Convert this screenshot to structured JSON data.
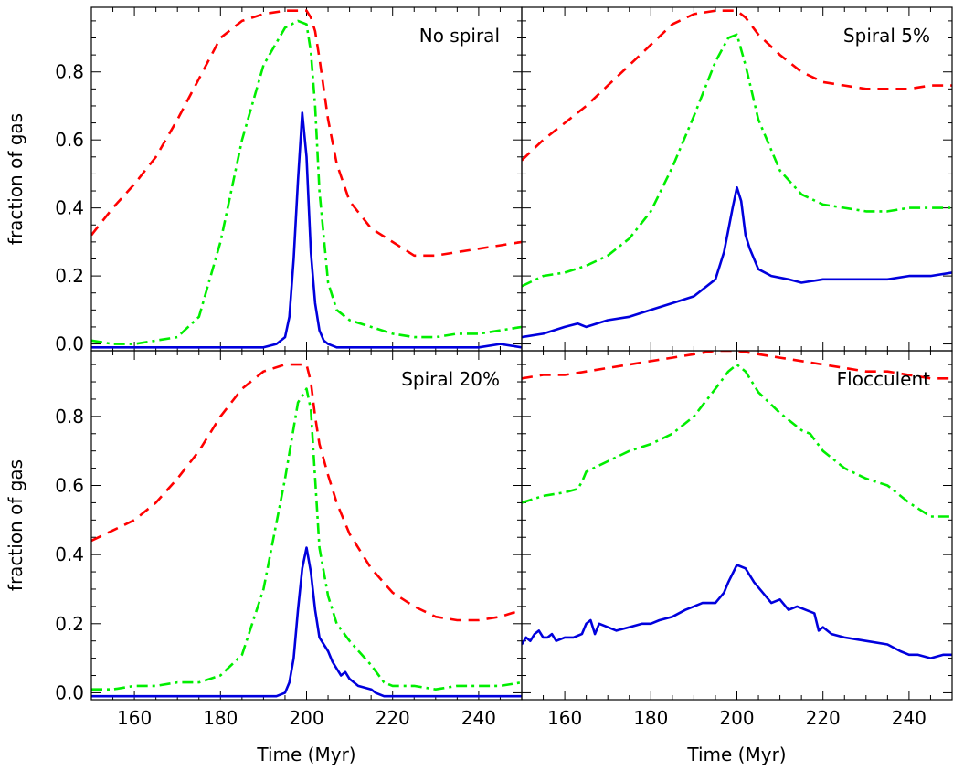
{
  "chart_data": [
    {
      "type": "line",
      "title": "No spiral",
      "xlabel": "",
      "ylabel": "fraction of gas",
      "xlim": [
        150,
        250
      ],
      "ylim": [
        -0.02,
        0.99
      ],
      "xticks": [],
      "yticks": [
        "0.0",
        "0.2",
        "0.4",
        "0.6",
        "0.8"
      ],
      "series": [
        {
          "color": "#ff0000",
          "dash": "12,8",
          "x": [
            150,
            155,
            160,
            165,
            170,
            175,
            180,
            185,
            190,
            195,
            198,
            200,
            201,
            202,
            203,
            205,
            207,
            210,
            215,
            220,
            225,
            230,
            235,
            240,
            245,
            250
          ],
          "y": [
            0.32,
            0.4,
            0.47,
            0.55,
            0.66,
            0.78,
            0.9,
            0.95,
            0.97,
            0.98,
            0.98,
            0.98,
            0.96,
            0.92,
            0.84,
            0.66,
            0.53,
            0.42,
            0.34,
            0.3,
            0.26,
            0.26,
            0.27,
            0.28,
            0.29,
            0.3
          ]
        },
        {
          "color": "#00ee00",
          "dash": "12,5,3,5",
          "x": [
            150,
            155,
            160,
            165,
            170,
            175,
            180,
            185,
            190,
            195,
            198,
            200,
            201,
            202,
            203,
            205,
            207,
            210,
            215,
            220,
            225,
            230,
            235,
            240,
            245,
            250
          ],
          "y": [
            0.01,
            0.0,
            0.0,
            0.01,
            0.02,
            0.08,
            0.3,
            0.6,
            0.82,
            0.93,
            0.95,
            0.94,
            0.86,
            0.7,
            0.45,
            0.18,
            0.1,
            0.07,
            0.05,
            0.03,
            0.02,
            0.02,
            0.03,
            0.03,
            0.04,
            0.05
          ]
        },
        {
          "color": "#0000dd",
          "dash": "",
          "x": [
            150,
            160,
            170,
            180,
            190,
            193,
            195,
            196,
            197,
            198,
            199,
            200,
            201,
            202,
            203,
            204,
            205,
            207,
            210,
            220,
            230,
            240,
            245,
            250
          ],
          "y": [
            -0.01,
            -0.01,
            -0.01,
            -0.01,
            -0.01,
            0.0,
            0.02,
            0.08,
            0.25,
            0.48,
            0.68,
            0.55,
            0.27,
            0.12,
            0.04,
            0.01,
            0.0,
            -0.01,
            -0.01,
            -0.01,
            -0.01,
            -0.01,
            0.0,
            -0.01
          ]
        }
      ]
    },
    {
      "type": "line",
      "title": "Spiral 5%",
      "xlabel": "",
      "ylabel": "",
      "xlim": [
        150,
        250
      ],
      "ylim": [
        -0.02,
        0.99
      ],
      "xticks": [],
      "yticks": [],
      "series": [
        {
          "color": "#ff0000",
          "dash": "12,8",
          "x": [
            150,
            155,
            160,
            165,
            170,
            175,
            180,
            185,
            190,
            195,
            200,
            202,
            205,
            210,
            215,
            220,
            225,
            230,
            235,
            240,
            245,
            250
          ],
          "y": [
            0.54,
            0.6,
            0.65,
            0.7,
            0.76,
            0.82,
            0.88,
            0.94,
            0.97,
            0.98,
            0.98,
            0.96,
            0.91,
            0.85,
            0.8,
            0.77,
            0.76,
            0.75,
            0.75,
            0.75,
            0.76,
            0.76
          ]
        },
        {
          "color": "#00ee00",
          "dash": "12,5,3,5",
          "x": [
            150,
            155,
            160,
            165,
            170,
            175,
            180,
            185,
            190,
            195,
            198,
            200,
            202,
            205,
            210,
            215,
            220,
            225,
            230,
            235,
            240,
            245,
            250
          ],
          "y": [
            0.17,
            0.2,
            0.21,
            0.23,
            0.26,
            0.31,
            0.39,
            0.52,
            0.67,
            0.83,
            0.9,
            0.91,
            0.82,
            0.66,
            0.51,
            0.44,
            0.41,
            0.4,
            0.39,
            0.39,
            0.4,
            0.4,
            0.4
          ]
        },
        {
          "color": "#0000dd",
          "dash": "",
          "x": [
            150,
            155,
            160,
            163,
            165,
            170,
            175,
            180,
            185,
            190,
            195,
            197,
            199,
            200,
            201,
            202,
            203,
            205,
            208,
            212,
            215,
            220,
            225,
            230,
            235,
            240,
            245,
            250
          ],
          "y": [
            0.02,
            0.03,
            0.05,
            0.06,
            0.05,
            0.07,
            0.08,
            0.1,
            0.12,
            0.14,
            0.19,
            0.27,
            0.4,
            0.46,
            0.42,
            0.32,
            0.28,
            0.22,
            0.2,
            0.19,
            0.18,
            0.19,
            0.19,
            0.19,
            0.19,
            0.2,
            0.2,
            0.21
          ]
        }
      ]
    },
    {
      "type": "line",
      "title": "Spiral 20%",
      "xlabel": "Time (Myr)",
      "ylabel": "fraction of gas",
      "xlim": [
        150,
        250
      ],
      "ylim": [
        -0.02,
        0.99
      ],
      "xticks": [
        "160",
        "180",
        "200",
        "220",
        "240"
      ],
      "yticks": [
        "0.0",
        "0.2",
        "0.4",
        "0.6",
        "0.8"
      ],
      "series": [
        {
          "color": "#ff0000",
          "dash": "12,8",
          "x": [
            150,
            155,
            160,
            165,
            170,
            175,
            180,
            185,
            190,
            195,
            200,
            201,
            202,
            203,
            205,
            207,
            210,
            215,
            220,
            225,
            230,
            235,
            240,
            245,
            250
          ],
          "y": [
            0.44,
            0.47,
            0.5,
            0.55,
            0.62,
            0.7,
            0.8,
            0.88,
            0.93,
            0.95,
            0.95,
            0.9,
            0.8,
            0.72,
            0.63,
            0.55,
            0.46,
            0.36,
            0.29,
            0.25,
            0.22,
            0.21,
            0.21,
            0.22,
            0.24
          ]
        },
        {
          "color": "#00ee00",
          "dash": "12,5,3,5",
          "x": [
            150,
            155,
            160,
            165,
            170,
            175,
            180,
            185,
            190,
            195,
            198,
            200,
            201,
            202,
            203,
            205,
            207,
            210,
            215,
            218,
            220,
            225,
            230,
            235,
            240,
            245,
            250
          ],
          "y": [
            0.01,
            0.01,
            0.02,
            0.02,
            0.03,
            0.03,
            0.05,
            0.11,
            0.3,
            0.62,
            0.84,
            0.88,
            0.82,
            0.62,
            0.42,
            0.28,
            0.2,
            0.15,
            0.08,
            0.03,
            0.02,
            0.02,
            0.01,
            0.02,
            0.02,
            0.02,
            0.03
          ]
        },
        {
          "color": "#0000dd",
          "dash": "",
          "x": [
            150,
            160,
            170,
            180,
            190,
            193,
            195,
            196,
            197,
            198,
            199,
            200,
            201,
            202,
            203,
            205,
            206,
            207,
            208,
            209,
            210,
            212,
            215,
            216,
            218,
            220,
            225,
            230,
            240,
            250
          ],
          "y": [
            -0.01,
            -0.01,
            -0.01,
            -0.01,
            -0.01,
            -0.01,
            0.0,
            0.03,
            0.1,
            0.24,
            0.36,
            0.42,
            0.35,
            0.24,
            0.16,
            0.12,
            0.09,
            0.07,
            0.05,
            0.06,
            0.04,
            0.02,
            0.01,
            0.0,
            -0.01,
            -0.01,
            -0.01,
            -0.01,
            -0.01,
            -0.01
          ]
        }
      ]
    },
    {
      "type": "line",
      "title": "Flocculent",
      "xlabel": "Time (Myr)",
      "ylabel": "",
      "xlim": [
        150,
        250
      ],
      "ylim": [
        -0.02,
        0.99
      ],
      "xticks": [
        "160",
        "180",
        "200",
        "220",
        "240"
      ],
      "yticks": [],
      "series": [
        {
          "color": "#ff0000",
          "dash": "12,8",
          "x": [
            150,
            155,
            160,
            165,
            170,
            175,
            180,
            185,
            190,
            195,
            200,
            205,
            210,
            215,
            220,
            225,
            230,
            235,
            240,
            245,
            250
          ],
          "y": [
            0.91,
            0.92,
            0.92,
            0.93,
            0.94,
            0.95,
            0.96,
            0.97,
            0.98,
            0.99,
            0.99,
            0.98,
            0.97,
            0.96,
            0.95,
            0.94,
            0.93,
            0.93,
            0.92,
            0.91,
            0.91
          ]
        },
        {
          "color": "#00ee00",
          "dash": "12,5,3,5",
          "x": [
            150,
            155,
            160,
            163,
            164,
            165,
            170,
            175,
            180,
            185,
            190,
            195,
            198,
            200,
            202,
            205,
            210,
            215,
            217,
            220,
            225,
            230,
            235,
            240,
            245,
            250
          ],
          "y": [
            0.55,
            0.57,
            0.58,
            0.59,
            0.61,
            0.64,
            0.67,
            0.7,
            0.72,
            0.75,
            0.8,
            0.88,
            0.93,
            0.95,
            0.93,
            0.87,
            0.81,
            0.76,
            0.75,
            0.7,
            0.65,
            0.62,
            0.6,
            0.55,
            0.51,
            0.51
          ]
        },
        {
          "color": "#0000dd",
          "dash": "",
          "x": [
            150,
            151,
            152,
            153,
            154,
            155,
            156,
            157,
            158,
            160,
            162,
            164,
            165,
            166,
            167,
            168,
            170,
            172,
            175,
            178,
            180,
            182,
            185,
            188,
            190,
            192,
            195,
            197,
            198,
            200,
            202,
            204,
            206,
            208,
            210,
            212,
            214,
            216,
            218,
            219,
            220,
            222,
            225,
            230,
            235,
            238,
            240,
            242,
            245,
            248,
            250
          ],
          "y": [
            0.14,
            0.16,
            0.15,
            0.17,
            0.18,
            0.16,
            0.16,
            0.17,
            0.15,
            0.16,
            0.16,
            0.17,
            0.2,
            0.21,
            0.17,
            0.2,
            0.19,
            0.18,
            0.19,
            0.2,
            0.2,
            0.21,
            0.22,
            0.24,
            0.25,
            0.26,
            0.26,
            0.29,
            0.32,
            0.37,
            0.36,
            0.32,
            0.29,
            0.26,
            0.27,
            0.24,
            0.25,
            0.24,
            0.23,
            0.18,
            0.19,
            0.17,
            0.16,
            0.15,
            0.14,
            0.12,
            0.11,
            0.11,
            0.1,
            0.11,
            0.11
          ]
        }
      ]
    }
  ]
}
